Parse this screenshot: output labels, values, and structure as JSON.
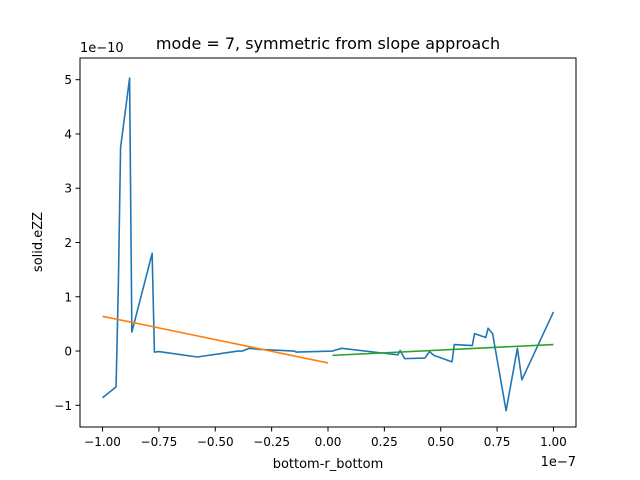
{
  "chart_data": {
    "type": "line",
    "title": "mode = 7, symmetric from slope approach",
    "xlabel": "bottom-r_bottom",
    "ylabel": "solid.eZZ",
    "x_offset_text": "1e−7",
    "y_offset_text": "1e−10",
    "xlim": [
      -1.1,
      1.1
    ],
    "ylim": [
      -1.4,
      5.4
    ],
    "x_ticks": [
      -1.0,
      -0.75,
      -0.5,
      -0.25,
      0.0,
      0.25,
      0.5,
      0.75,
      1.0
    ],
    "x_tick_labels": [
      "−1.00",
      "−0.75",
      "−0.50",
      "−0.25",
      "0.00",
      "0.25",
      "0.50",
      "0.75",
      "1.00"
    ],
    "y_ticks": [
      -1,
      0,
      1,
      2,
      3,
      4,
      5
    ],
    "y_tick_labels": [
      "−1",
      "0",
      "1",
      "2",
      "3",
      "4",
      "5"
    ],
    "grid": false,
    "series": [
      {
        "name": "",
        "color": "#1f77b4",
        "points": [
          [
            -1.0,
            -0.86
          ],
          [
            -0.94,
            -0.66
          ],
          [
            -0.93,
            1.2
          ],
          [
            -0.92,
            3.75
          ],
          [
            -0.88,
            5.03
          ],
          [
            -0.87,
            0.35
          ],
          [
            -0.78,
            1.8
          ],
          [
            -0.77,
            -0.02
          ],
          [
            -0.75,
            -0.01
          ],
          [
            -0.58,
            -0.11
          ],
          [
            -0.4,
            0.0
          ],
          [
            -0.38,
            0.0
          ],
          [
            -0.35,
            0.05
          ],
          [
            -0.3,
            0.03
          ],
          [
            -0.15,
            0.0
          ],
          [
            -0.14,
            -0.02
          ],
          [
            0.02,
            0.0
          ],
          [
            0.06,
            0.05
          ],
          [
            0.31,
            -0.07
          ],
          [
            0.32,
            0.01
          ],
          [
            0.34,
            -0.14
          ],
          [
            0.43,
            -0.13
          ],
          [
            0.45,
            -0.01
          ],
          [
            0.47,
            -0.08
          ],
          [
            0.55,
            -0.2
          ],
          [
            0.56,
            0.12
          ],
          [
            0.64,
            0.1
          ],
          [
            0.65,
            0.32
          ],
          [
            0.7,
            0.25
          ],
          [
            0.71,
            0.42
          ],
          [
            0.73,
            0.32
          ],
          [
            0.79,
            -1.1
          ],
          [
            0.84,
            0.05
          ],
          [
            0.86,
            -0.53
          ],
          [
            1.0,
            0.72
          ]
        ]
      },
      {
        "name": "",
        "color": "#ff7f0e",
        "points": [
          [
            -1.0,
            0.64
          ],
          [
            0.0,
            -0.22
          ]
        ]
      },
      {
        "name": "",
        "color": "#2ca02c",
        "points": [
          [
            0.02,
            -0.08
          ],
          [
            1.0,
            0.12
          ]
        ]
      }
    ]
  }
}
